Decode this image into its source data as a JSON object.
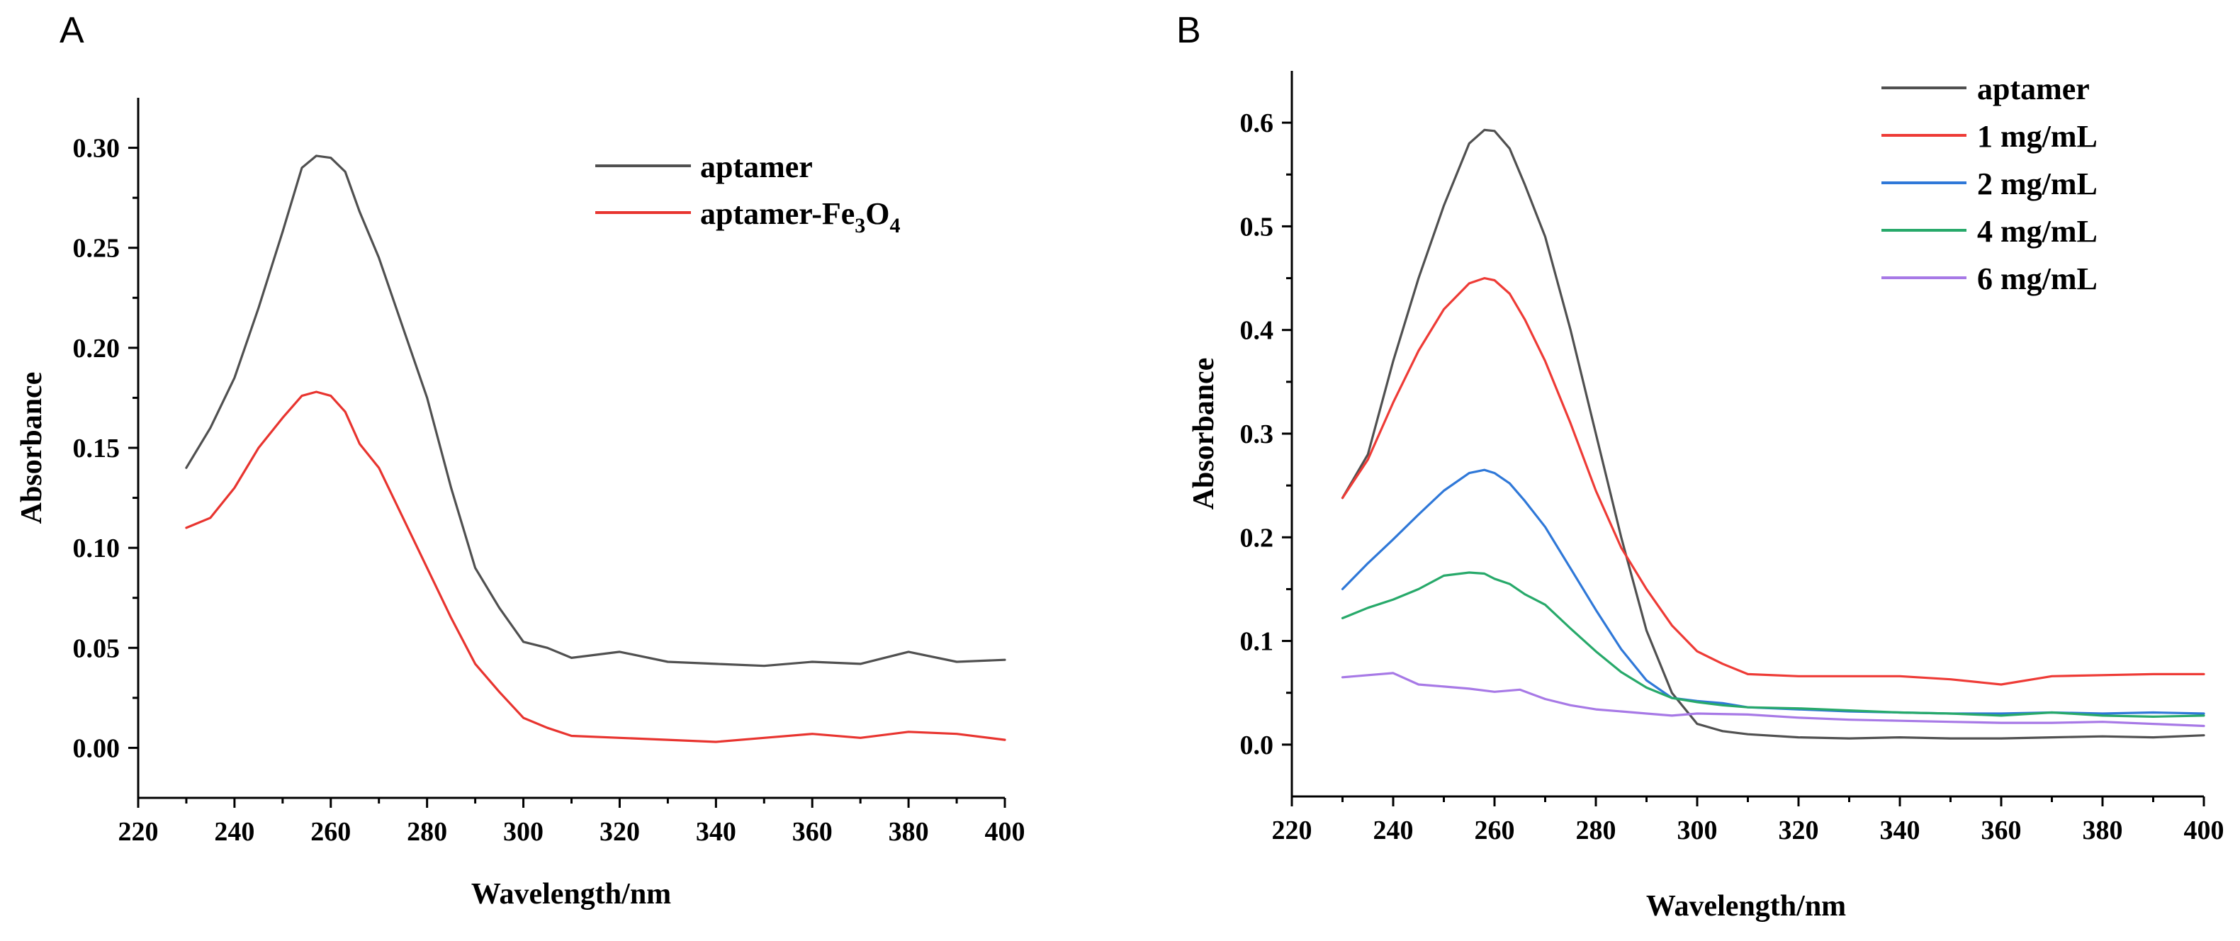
{
  "chart_data": [
    {
      "type": "line",
      "panel_label": "A",
      "xlabel": "Wavelength/nm",
      "ylabel": "Absorbance",
      "xlim": [
        220,
        400
      ],
      "ylim": [
        -0.025,
        0.325
      ],
      "xticks": [
        220,
        240,
        260,
        280,
        300,
        320,
        340,
        360,
        380,
        400
      ],
      "yticks": [
        0.0,
        0.05,
        0.1,
        0.15,
        0.2,
        0.25,
        0.3
      ],
      "ytick_labels": [
        "0.00",
        "0.05",
        "0.10",
        "0.15",
        "0.20",
        "0.25",
        "0.30"
      ],
      "legend_position": "top-right",
      "series": [
        {
          "name": "aptamer",
          "color": "#505050",
          "x": [
            230,
            235,
            240,
            245,
            250,
            254,
            257,
            260,
            263,
            266,
            270,
            275,
            280,
            285,
            290,
            295,
            300,
            305,
            310,
            320,
            330,
            340,
            350,
            360,
            370,
            380,
            390,
            400
          ],
          "y": [
            0.14,
            0.16,
            0.185,
            0.22,
            0.258,
            0.29,
            0.296,
            0.295,
            0.288,
            0.268,
            0.245,
            0.21,
            0.175,
            0.13,
            0.09,
            0.07,
            0.053,
            0.05,
            0.045,
            0.048,
            0.043,
            0.042,
            0.041,
            0.043,
            0.042,
            0.048,
            0.043,
            0.044
          ]
        },
        {
          "name": "aptamer-Fe3O4",
          "label_parts": [
            "aptamer-Fe",
            "3",
            "O",
            "4"
          ],
          "color": "#e8342f",
          "x": [
            230,
            235,
            240,
            245,
            250,
            254,
            257,
            260,
            263,
            266,
            270,
            275,
            280,
            285,
            290,
            295,
            300,
            305,
            310,
            320,
            330,
            340,
            350,
            360,
            370,
            380,
            390,
            400
          ],
          "y": [
            0.11,
            0.115,
            0.13,
            0.15,
            0.165,
            0.176,
            0.178,
            0.176,
            0.168,
            0.152,
            0.14,
            0.115,
            0.09,
            0.065,
            0.042,
            0.028,
            0.015,
            0.01,
            0.006,
            0.005,
            0.004,
            0.003,
            0.005,
            0.007,
            0.005,
            0.008,
            0.007,
            0.004
          ]
        }
      ]
    },
    {
      "type": "line",
      "panel_label": "B",
      "xlabel": "Wavelength/nm",
      "ylabel": "Absorbance",
      "xlim": [
        220,
        400
      ],
      "ylim": [
        -0.05,
        0.65
      ],
      "xticks": [
        220,
        240,
        260,
        280,
        300,
        320,
        340,
        360,
        380,
        400
      ],
      "yticks": [
        0.0,
        0.1,
        0.2,
        0.3,
        0.4,
        0.5,
        0.6
      ],
      "ytick_labels": [
        "0.0",
        "0.1",
        "0.2",
        "0.3",
        "0.4",
        "0.5",
        "0.6"
      ],
      "legend_position": "top-right",
      "series": [
        {
          "name": "aptamer",
          "color": "#505050",
          "x": [
            230,
            235,
            240,
            245,
            250,
            255,
            258,
            260,
            263,
            266,
            270,
            275,
            280,
            285,
            290,
            295,
            300,
            305,
            310,
            320,
            330,
            340,
            350,
            360,
            370,
            380,
            390,
            400
          ],
          "y": [
            0.238,
            0.28,
            0.37,
            0.45,
            0.52,
            0.58,
            0.593,
            0.592,
            0.575,
            0.54,
            0.49,
            0.4,
            0.3,
            0.2,
            0.11,
            0.05,
            0.02,
            0.013,
            0.01,
            0.007,
            0.006,
            0.007,
            0.006,
            0.006,
            0.007,
            0.008,
            0.007,
            0.009
          ]
        },
        {
          "name": "1 mg/mL",
          "color": "#ee3b36",
          "x": [
            230,
            235,
            240,
            245,
            250,
            255,
            258,
            260,
            263,
            266,
            270,
            275,
            280,
            285,
            290,
            295,
            300,
            305,
            310,
            320,
            330,
            340,
            350,
            360,
            370,
            380,
            390,
            400
          ],
          "y": [
            0.238,
            0.275,
            0.33,
            0.38,
            0.42,
            0.445,
            0.45,
            0.448,
            0.435,
            0.41,
            0.37,
            0.31,
            0.245,
            0.19,
            0.15,
            0.115,
            0.09,
            0.078,
            0.068,
            0.066,
            0.066,
            0.066,
            0.063,
            0.058,
            0.066,
            0.067,
            0.068,
            0.068
          ]
        },
        {
          "name": "2 mg/mL",
          "color": "#2f78d8",
          "x": [
            230,
            235,
            240,
            245,
            250,
            255,
            258,
            260,
            263,
            266,
            270,
            275,
            280,
            285,
            290,
            295,
            300,
            305,
            310,
            320,
            330,
            340,
            350,
            360,
            370,
            380,
            390,
            400
          ],
          "y": [
            0.15,
            0.175,
            0.198,
            0.222,
            0.245,
            0.262,
            0.265,
            0.262,
            0.252,
            0.235,
            0.21,
            0.17,
            0.13,
            0.092,
            0.062,
            0.045,
            0.042,
            0.04,
            0.036,
            0.034,
            0.032,
            0.031,
            0.03,
            0.03,
            0.031,
            0.03,
            0.031,
            0.03
          ]
        },
        {
          "name": "4 mg/mL",
          "color": "#27a96a",
          "x": [
            230,
            235,
            240,
            245,
            250,
            255,
            258,
            260,
            263,
            266,
            270,
            275,
            280,
            285,
            290,
            295,
            300,
            305,
            310,
            320,
            330,
            340,
            350,
            360,
            370,
            380,
            390,
            400
          ],
          "y": [
            0.122,
            0.132,
            0.14,
            0.15,
            0.163,
            0.166,
            0.165,
            0.16,
            0.155,
            0.145,
            0.135,
            0.112,
            0.09,
            0.07,
            0.055,
            0.045,
            0.041,
            0.038,
            0.036,
            0.035,
            0.033,
            0.031,
            0.03,
            0.028,
            0.031,
            0.028,
            0.027,
            0.028
          ]
        },
        {
          "name": "6 mg/mL",
          "color": "#a779e6",
          "x": [
            230,
            235,
            240,
            245,
            250,
            255,
            260,
            265,
            270,
            275,
            280,
            285,
            290,
            295,
            300,
            310,
            320,
            330,
            340,
            350,
            360,
            370,
            380,
            390,
            400
          ],
          "y": [
            0.065,
            0.067,
            0.069,
            0.058,
            0.056,
            0.054,
            0.051,
            0.053,
            0.044,
            0.038,
            0.034,
            0.032,
            0.03,
            0.028,
            0.03,
            0.029,
            0.026,
            0.024,
            0.023,
            0.022,
            0.021,
            0.021,
            0.022,
            0.02,
            0.018
          ]
        }
      ]
    }
  ]
}
